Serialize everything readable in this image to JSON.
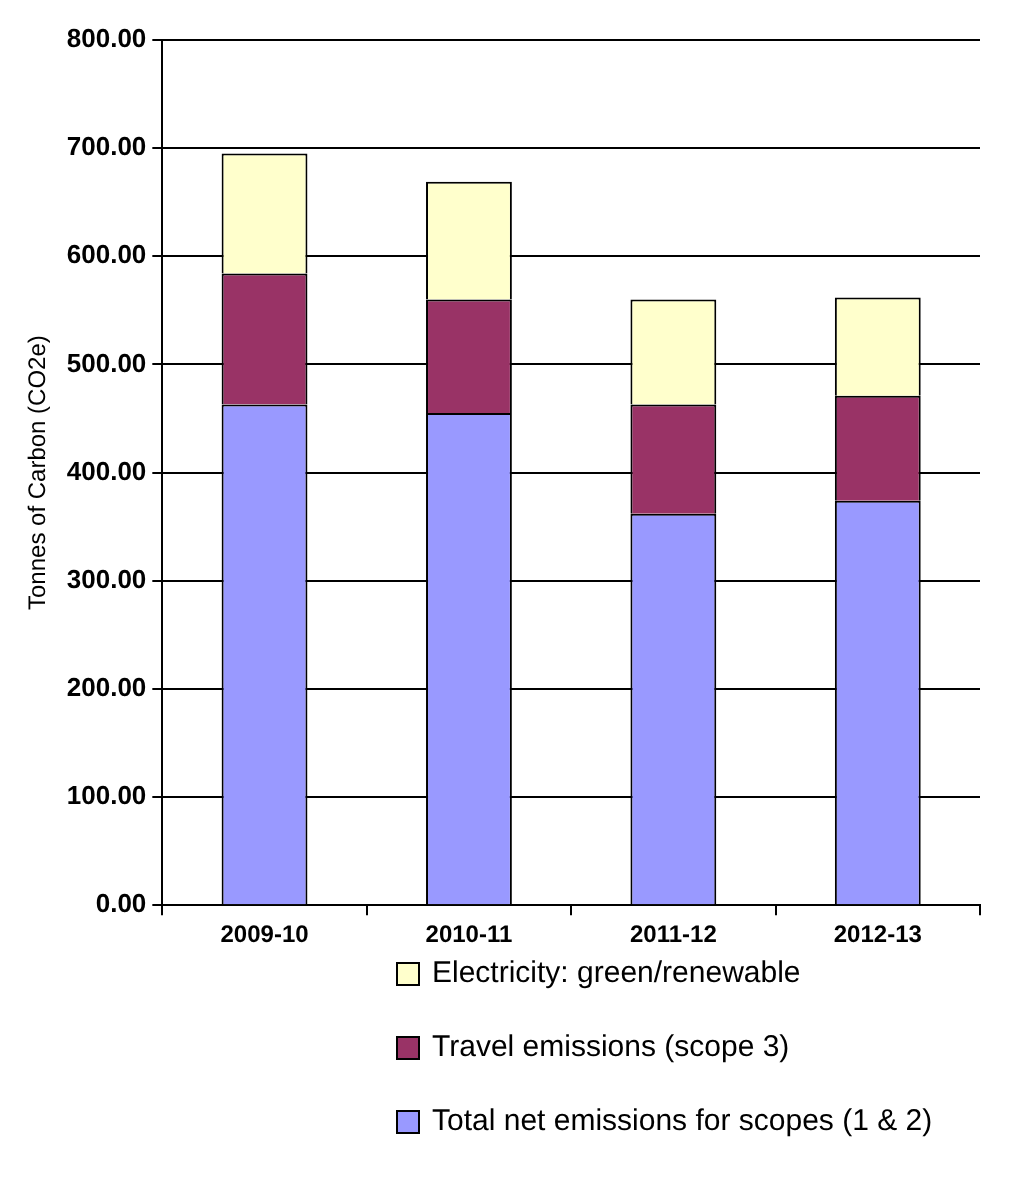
{
  "chart_data": {
    "type": "bar",
    "stacked": true,
    "ylabel": "Tonnes of Carbon (CO2e)",
    "categories": [
      "2009-10",
      "2010-11",
      "2011-12",
      "2012-13"
    ],
    "series": [
      {
        "name": "Total net emissions for scopes (1 & 2)",
        "color": "#9999ff",
        "values": [
          463,
          455,
          362,
          374
        ]
      },
      {
        "name": "Travel emissions (scope 3)",
        "color": "#993366",
        "values": [
          121,
          105,
          101,
          97
        ]
      },
      {
        "name": "Electricity: green/renewable",
        "color": "#ffffcc",
        "values": [
          111,
          109,
          97,
          91
        ]
      }
    ],
    "ylim": [
      0,
      800
    ],
    "yticks": [
      {
        "value": 0,
        "label": "0.00"
      },
      {
        "value": 100,
        "label": "100.00"
      },
      {
        "value": 200,
        "label": "200.00"
      },
      {
        "value": 300,
        "label": "300.00"
      },
      {
        "value": 400,
        "label": "400.00"
      },
      {
        "value": 500,
        "label": "500.00"
      },
      {
        "value": 600,
        "label": "600.00"
      },
      {
        "value": 700,
        "label": "700.00"
      },
      {
        "value": 800,
        "label": "800.00"
      }
    ],
    "grid": "y",
    "legend": "bottom"
  }
}
